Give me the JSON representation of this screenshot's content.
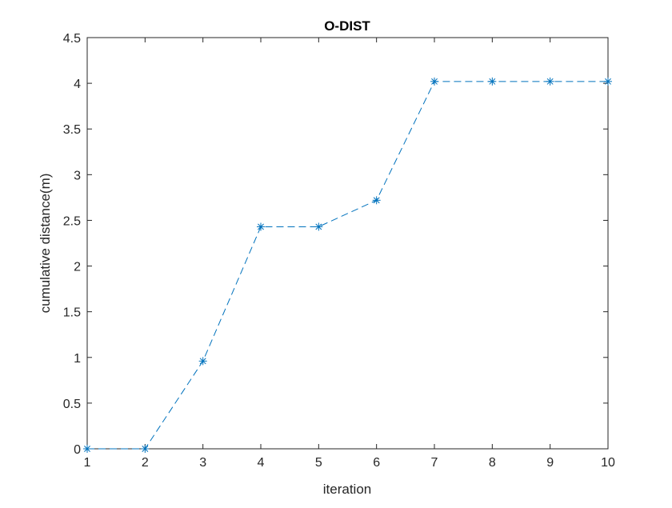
{
  "chart_data": {
    "type": "line",
    "title": "O-DIST",
    "xlabel": "iteration",
    "ylabel": "cumulative distance(m)",
    "xlim": [
      1,
      10
    ],
    "ylim": [
      0,
      4.5
    ],
    "xticks": [
      1,
      2,
      3,
      4,
      5,
      6,
      7,
      8,
      9,
      10
    ],
    "yticks": [
      0,
      0.5,
      1,
      1.5,
      2,
      2.5,
      3,
      3.5,
      4,
      4.5
    ],
    "grid": false,
    "line_style": "dashed",
    "marker": "asterisk",
    "color": "#0072BD",
    "series": [
      {
        "x": [
          1,
          2,
          3,
          4,
          5,
          6,
          7,
          8,
          9,
          10
        ],
        "values": [
          0,
          0,
          0.96,
          2.43,
          2.43,
          2.72,
          4.02,
          4.02,
          4.02,
          4.02
        ]
      }
    ]
  }
}
